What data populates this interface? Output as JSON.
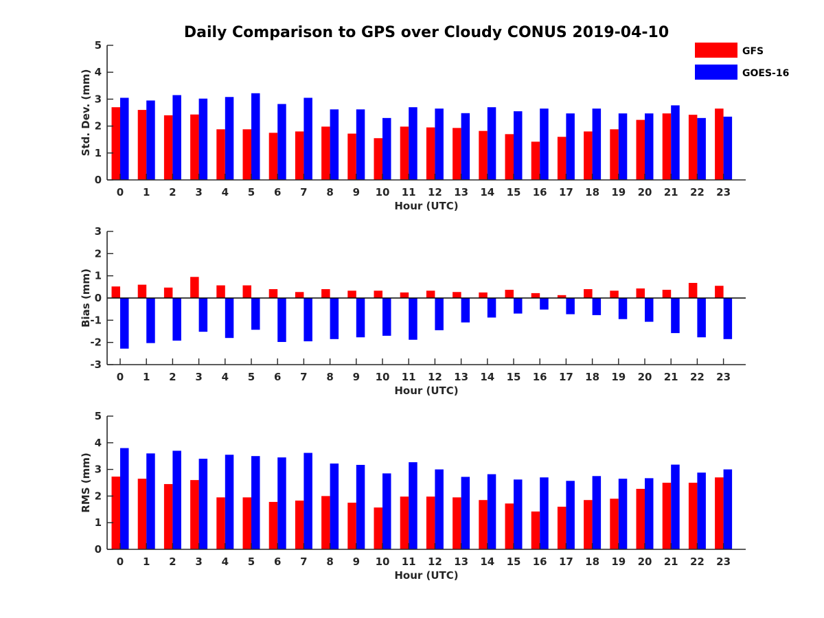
{
  "figure": {
    "title": "Daily Comparison to GPS over Cloudy CONUS 2019-04-10"
  },
  "legend": [
    {
      "name": "GFS",
      "color": "#ff0000"
    },
    {
      "name": "GOES-16",
      "color": "#0000ff"
    }
  ],
  "chart_data": [
    {
      "type": "bar",
      "title": "Daily Comparison to GPS over Cloudy CONUS 2019-04-10",
      "xlabel": "Hour (UTC)",
      "ylabel": "Std. Dev. (mm)",
      "ylim": [
        0,
        5
      ],
      "yticks": [
        0,
        1,
        2,
        3,
        4,
        5
      ],
      "categories": [
        "0",
        "1",
        "2",
        "3",
        "4",
        "5",
        "6",
        "7",
        "8",
        "9",
        "10",
        "11",
        "12",
        "13",
        "14",
        "15",
        "16",
        "17",
        "18",
        "19",
        "20",
        "21",
        "22",
        "23"
      ],
      "legend_position": "top-right",
      "series": [
        {
          "name": "GFS",
          "color": "#ff0000",
          "values": [
            2.7,
            2.6,
            2.4,
            2.43,
            1.88,
            1.88,
            1.75,
            1.8,
            1.98,
            1.72,
            1.55,
            1.98,
            1.95,
            1.93,
            1.82,
            1.7,
            1.42,
            1.6,
            1.8,
            1.88,
            2.23,
            2.47,
            2.42,
            2.65
          ]
        },
        {
          "name": "GOES-16",
          "color": "#0000ff",
          "values": [
            3.05,
            2.95,
            3.15,
            3.02,
            3.08,
            3.22,
            2.82,
            3.05,
            2.62,
            2.62,
            2.3,
            2.7,
            2.65,
            2.48,
            2.7,
            2.55,
            2.65,
            2.47,
            2.65,
            2.47,
            2.47,
            2.77,
            2.3,
            2.35
          ]
        }
      ]
    },
    {
      "type": "bar",
      "xlabel": "Hour (UTC)",
      "ylabel": "Bias (mm)",
      "ylim": [
        -3,
        3
      ],
      "yticks": [
        -3,
        -2,
        -1,
        0,
        1,
        2,
        3
      ],
      "categories": [
        "0",
        "1",
        "2",
        "3",
        "4",
        "5",
        "6",
        "7",
        "8",
        "9",
        "10",
        "11",
        "12",
        "13",
        "14",
        "15",
        "16",
        "17",
        "18",
        "19",
        "20",
        "21",
        "22",
        "23"
      ],
      "series": [
        {
          "name": "GFS",
          "color": "#ff0000",
          "values": [
            0.52,
            0.6,
            0.47,
            0.95,
            0.57,
            0.57,
            0.4,
            0.27,
            0.4,
            0.33,
            0.33,
            0.25,
            0.33,
            0.27,
            0.25,
            0.37,
            0.22,
            0.13,
            0.4,
            0.33,
            0.43,
            0.37,
            0.68,
            0.55
          ]
        },
        {
          "name": "GOES-16",
          "color": "#0000ff",
          "values": [
            -2.28,
            -2.03,
            -1.92,
            -1.52,
            -1.8,
            -1.43,
            -1.98,
            -1.95,
            -1.85,
            -1.77,
            -1.7,
            -1.88,
            -1.45,
            -1.1,
            -0.88,
            -0.7,
            -0.52,
            -0.73,
            -0.77,
            -0.95,
            -1.07,
            -1.58,
            -1.77,
            -1.85
          ]
        }
      ]
    },
    {
      "type": "bar",
      "xlabel": "Hour (UTC)",
      "ylabel": "RMS (mm)",
      "ylim": [
        0,
        5
      ],
      "yticks": [
        0,
        1,
        2,
        3,
        4,
        5
      ],
      "categories": [
        "0",
        "1",
        "2",
        "3",
        "4",
        "5",
        "6",
        "7",
        "8",
        "9",
        "10",
        "11",
        "12",
        "13",
        "14",
        "15",
        "16",
        "17",
        "18",
        "19",
        "20",
        "21",
        "22",
        "23"
      ],
      "series": [
        {
          "name": "GFS",
          "color": "#ff0000",
          "values": [
            2.73,
            2.65,
            2.45,
            2.6,
            1.95,
            1.95,
            1.78,
            1.83,
            2.0,
            1.75,
            1.57,
            1.98,
            1.98,
            1.95,
            1.85,
            1.72,
            1.42,
            1.6,
            1.85,
            1.9,
            2.27,
            2.5,
            2.5,
            2.7
          ]
        },
        {
          "name": "GOES-16",
          "color": "#0000ff",
          "values": [
            3.8,
            3.6,
            3.7,
            3.4,
            3.55,
            3.5,
            3.45,
            3.62,
            3.22,
            3.17,
            2.85,
            3.27,
            3.0,
            2.72,
            2.82,
            2.62,
            2.7,
            2.57,
            2.75,
            2.65,
            2.67,
            3.18,
            2.88,
            3.0
          ]
        }
      ]
    }
  ]
}
